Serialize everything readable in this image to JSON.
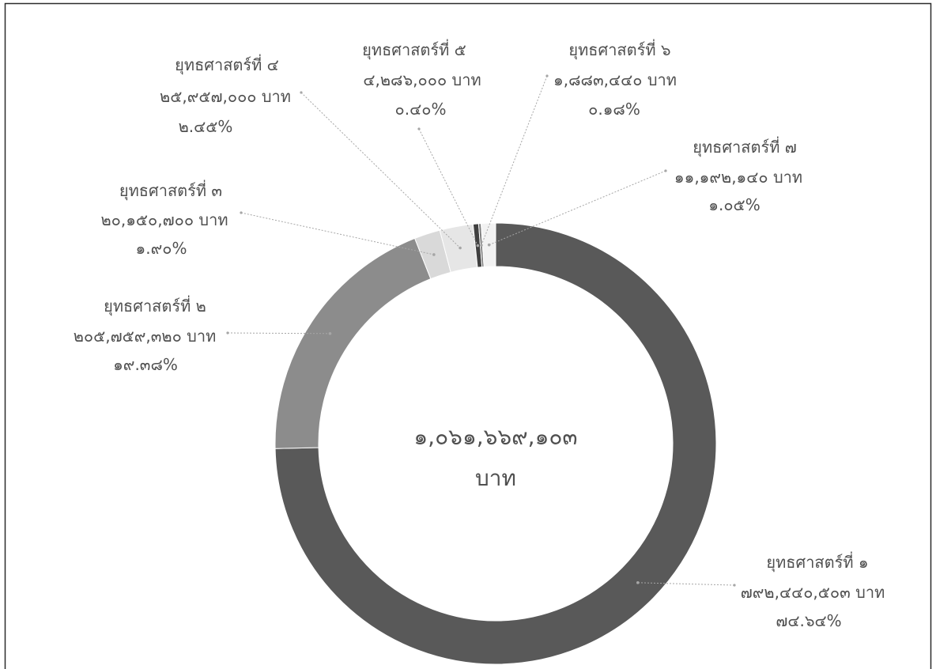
{
  "chart_data": {
    "type": "pie",
    "donut": true,
    "categories": [
      "ยุทธศาสตร์ที่ ๑",
      "ยุทธศาสตร์ที่ ๒",
      "ยุทธศาสตร์ที่ ๓",
      "ยุทธศาสตร์ที่ ๔",
      "ยุทธศาสตร์ที่ ๕",
      "ยุทธศาสตร์ที่ ๖",
      "ยุทธศาสตร์ที่ ๗"
    ],
    "values": [
      792440503,
      205759320,
      20150700,
      25957000,
      4286000,
      1883440,
      11192140
    ],
    "value_labels": [
      "๗๙๒,๔๔๐,๕๐๓ บาท",
      "๒๐๕,๗๕๙,๓๒๐ บาท",
      "๒๐,๑๕๐,๗๐๐ บาท",
      "๒๕,๙๕๗,๐๐๐ บาท",
      "๔,๒๘๖,๐๐๐ บาท",
      "๑,๘๘๓,๔๔๐ บาท",
      "๑๑,๑๙๒,๑๔๐ บาท"
    ],
    "percentages": [
      74.64,
      19.38,
      1.9,
      2.45,
      0.4,
      0.18,
      1.05
    ],
    "percent_labels": [
      "๗๔.๖๔%",
      "๑๙.๓๘%",
      "๑.๙๐%",
      "๒.๔๕%",
      "๐.๔๐%",
      "๐.๑๘%",
      "๑.๐๕%"
    ],
    "colors": [
      "#595959",
      "#8c8c8c",
      "#d9d9d9",
      "#e6e6e6",
      "#404040",
      "#7a7a7a",
      "#f2f2f2"
    ],
    "center_label": {
      "value": "๑,๐๖๑,๖๖๙,๑๐๓",
      "unit": "บาท"
    }
  }
}
